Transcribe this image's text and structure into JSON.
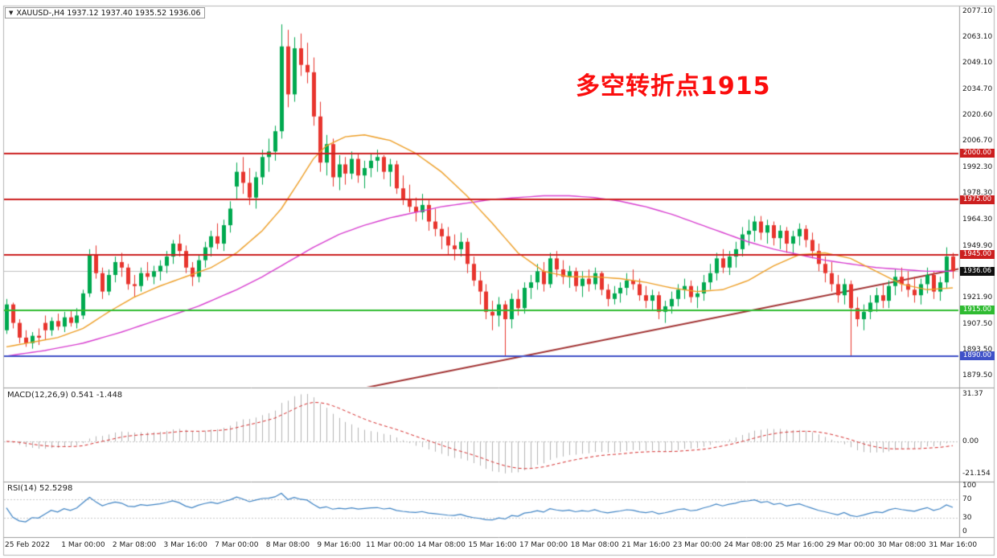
{
  "symbol_bar": {
    "text": "XAUUSD-,H4 1937.12 1937.40 1935.52 1936.06"
  },
  "annotation": {
    "text": "多空转折点1915",
    "color": "#fb0d0d"
  },
  "indicators": {
    "macd_label": "MACD(12,26,9) 0.541 -1.448",
    "rsi_label": "RSI(14) 52.5298"
  },
  "current_price": {
    "value": 1936.06,
    "label": "1936.06",
    "badge_bg": "#101010",
    "line_color": "#c0c0c0"
  },
  "price_lines": [
    {
      "price": 2000.0,
      "label": "2000.00",
      "color": "#cc1f1f"
    },
    {
      "price": 1975.0,
      "label": "1975.00",
      "color": "#cc1f1f"
    },
    {
      "price": 1945.0,
      "label": "1945.00",
      "color": "#cc1f1f"
    },
    {
      "price": 1915.0,
      "label": "1915.00",
      "color": "#2fbb31"
    },
    {
      "price": 1890.0,
      "label": "1890.00",
      "color": "#3f51c8"
    }
  ],
  "axes": {
    "price_ticks": [
      "2077.10",
      "2063.10",
      "2049.10",
      "2034.70",
      "2020.60",
      "2006.70",
      "1992.30",
      "1978.30",
      "1964.30",
      "1949.90",
      "1935.90",
      "1921.90",
      "1907.50",
      "1893.50",
      "1879.50"
    ],
    "macd_ticks": [
      {
        "label": "31.37",
        "value": 31.37
      },
      {
        "label": "0.00",
        "value": 0
      },
      {
        "label": "-21.154",
        "value": -21.154
      }
    ],
    "rsi_ticks": [
      {
        "label": "100",
        "value": 100
      },
      {
        "label": "70",
        "value": 70
      },
      {
        "label": "30",
        "value": 30
      },
      {
        "label": "0",
        "value": 0
      }
    ],
    "time_labels": [
      {
        "label": "25 Feb 2022",
        "bar": 0
      },
      {
        "label": "1 Mar 00:00",
        "bar": 12
      },
      {
        "label": "2 Mar 08:00",
        "bar": 20
      },
      {
        "label": "3 Mar 16:00",
        "bar": 28
      },
      {
        "label": "7 Mar 00:00",
        "bar": 36
      },
      {
        "label": "8 Mar 08:00",
        "bar": 44
      },
      {
        "label": "9 Mar 16:00",
        "bar": 52
      },
      {
        "label": "11 Mar 00:00",
        "bar": 60
      },
      {
        "label": "14 Mar 08:00",
        "bar": 68
      },
      {
        "label": "15 Mar 16:00",
        "bar": 76
      },
      {
        "label": "17 Mar 00:00",
        "bar": 84
      },
      {
        "label": "18 Mar 08:00",
        "bar": 92
      },
      {
        "label": "21 Mar 16:00",
        "bar": 100
      },
      {
        "label": "23 Mar 00:00",
        "bar": 108
      },
      {
        "label": "24 Mar 08:00",
        "bar": 116
      },
      {
        "label": "25 Mar 16:00",
        "bar": 124
      },
      {
        "label": "29 Mar 00:00",
        "bar": 132
      },
      {
        "label": "30 Mar 08:00",
        "bar": 140
      },
      {
        "label": "31 Mar 16:00",
        "bar": 148
      }
    ]
  },
  "chart_data": {
    "type": "candlestick",
    "symbol": "XAUUSD",
    "timeframe": "H4",
    "ohlc_display": {
      "open": 1937.12,
      "high": 1937.4,
      "low": 1935.52,
      "close": 1936.06
    },
    "price_axis": {
      "min": 1879.5,
      "max": 2077.1
    },
    "colors": {
      "up": "#00a94f",
      "down": "#e8352e"
    },
    "candles": [
      [
        1904,
        1921,
        1902,
        1918
      ],
      [
        1918,
        1919,
        1905,
        1908
      ],
      [
        1908,
        1910,
        1897,
        1900
      ],
      [
        1900,
        1904,
        1895,
        1897
      ],
      [
        1897,
        1903,
        1894,
        1901
      ],
      [
        1901,
        1905,
        1896,
        1900
      ],
      [
        1908,
        1912,
        1899,
        1904
      ],
      [
        1904,
        1911,
        1901,
        1909
      ],
      [
        1909,
        1913,
        1904,
        1906
      ],
      [
        1906,
        1914,
        1903,
        1911
      ],
      [
        1911,
        1915,
        1906,
        1908
      ],
      [
        1908,
        1916,
        1905,
        1912
      ],
      [
        1912,
        1926,
        1910,
        1924
      ],
      [
        1924,
        1948,
        1922,
        1945
      ],
      [
        1945,
        1950,
        1932,
        1935
      ],
      [
        1935,
        1938,
        1921,
        1925
      ],
      [
        1925,
        1937,
        1923,
        1934
      ],
      [
        1934,
        1944,
        1930,
        1941
      ],
      [
        1941,
        1946,
        1933,
        1938
      ],
      [
        1938,
        1940,
        1926,
        1929
      ],
      [
        1929,
        1934,
        1922,
        1928
      ],
      [
        1928,
        1938,
        1925,
        1935
      ],
      [
        1935,
        1941,
        1931,
        1933
      ],
      [
        1933,
        1939,
        1929,
        1936
      ],
      [
        1936,
        1942,
        1931,
        1939
      ],
      [
        1939,
        1947,
        1935,
        1944
      ],
      [
        1944,
        1953,
        1940,
        1951
      ],
      [
        1951,
        1956,
        1944,
        1947
      ],
      [
        1947,
        1950,
        1935,
        1938
      ],
      [
        1938,
        1941,
        1928,
        1933
      ],
      [
        1933,
        1945,
        1930,
        1942
      ],
      [
        1942,
        1952,
        1938,
        1949
      ],
      [
        1949,
        1958,
        1944,
        1955
      ],
      [
        1955,
        1962,
        1948,
        1951
      ],
      [
        1951,
        1964,
        1947,
        1961
      ],
      [
        1961,
        1974,
        1957,
        1970
      ],
      [
        1982,
        1995,
        1975,
        1990
      ],
      [
        1990,
        1998,
        1978,
        1984
      ],
      [
        1984,
        1992,
        1972,
        1976
      ],
      [
        1976,
        1990,
        1970,
        1987
      ],
      [
        1987,
        2002,
        1983,
        1998
      ],
      [
        1998,
        2008,
        1990,
        2001
      ],
      [
        2001,
        2015,
        1996,
        2012
      ],
      [
        2012,
        2070,
        2008,
        2058
      ],
      [
        2058,
        2067,
        2025,
        2032
      ],
      [
        2032,
        2063,
        2028,
        2057
      ],
      [
        2057,
        2065,
        2042,
        2048
      ],
      [
        2048,
        2060,
        2038,
        2044
      ],
      [
        2044,
        2052,
        2015,
        2020
      ],
      [
        2020,
        2028,
        1990,
        1995
      ],
      [
        1995,
        2010,
        1988,
        2005
      ],
      [
        2005,
        2008,
        1982,
        1987
      ],
      [
        1987,
        1999,
        1980,
        1994
      ],
      [
        1994,
        1998,
        1983,
        1989
      ],
      [
        1989,
        2001,
        1986,
        1997
      ],
      [
        1997,
        2000,
        1984,
        1988
      ],
      [
        1988,
        1996,
        1981,
        1992
      ],
      [
        1992,
        2000,
        1987,
        1996
      ],
      [
        1996,
        2002,
        1990,
        1998
      ],
      [
        1998,
        1999,
        1986,
        1990
      ],
      [
        1990,
        1997,
        1982,
        1994
      ],
      [
        1994,
        1996,
        1978,
        1981
      ],
      [
        1981,
        1988,
        1972,
        1975
      ],
      [
        1975,
        1983,
        1968,
        1971
      ],
      [
        1971,
        1976,
        1963,
        1968
      ],
      [
        1968,
        1978,
        1964,
        1972
      ],
      [
        1972,
        1975,
        1958,
        1963
      ],
      [
        1963,
        1970,
        1955,
        1959
      ],
      [
        1959,
        1962,
        1948,
        1955
      ],
      [
        1955,
        1960,
        1945,
        1950
      ],
      [
        1950,
        1956,
        1942,
        1948
      ],
      [
        1948,
        1957,
        1944,
        1952
      ],
      [
        1952,
        1954,
        1935,
        1940
      ],
      [
        1940,
        1944,
        1928,
        1931
      ],
      [
        1931,
        1936,
        1918,
        1925
      ],
      [
        1925,
        1929,
        1910,
        1914
      ],
      [
        1914,
        1920,
        1904,
        1912
      ],
      [
        1912,
        1922,
        1906,
        1918
      ],
      [
        1918,
        1920,
        1890,
        1910
      ],
      [
        1910,
        1924,
        1905,
        1921
      ],
      [
        1921,
        1926,
        1912,
        1916
      ],
      [
        1916,
        1930,
        1913,
        1927
      ],
      [
        1927,
        1934,
        1921,
        1930
      ],
      [
        1930,
        1940,
        1926,
        1936
      ],
      [
        1936,
        1941,
        1925,
        1929
      ],
      [
        1929,
        1946,
        1927,
        1943
      ],
      [
        1943,
        1947,
        1933,
        1937
      ],
      [
        1937,
        1942,
        1929,
        1933
      ],
      [
        1933,
        1939,
        1927,
        1936
      ],
      [
        1936,
        1938,
        1925,
        1928
      ],
      [
        1928,
        1936,
        1922,
        1932
      ],
      [
        1932,
        1937,
        1925,
        1929
      ],
      [
        1929,
        1938,
        1926,
        1935
      ],
      [
        1935,
        1936,
        1923,
        1926
      ],
      [
        1926,
        1929,
        1917,
        1921
      ],
      [
        1921,
        1928,
        1918,
        1924
      ],
      [
        1924,
        1930,
        1919,
        1927
      ],
      [
        1927,
        1935,
        1923,
        1931
      ],
      [
        1931,
        1937,
        1926,
        1929
      ],
      [
        1929,
        1932,
        1920,
        1923
      ],
      [
        1923,
        1928,
        1916,
        1920
      ],
      [
        1920,
        1926,
        1915,
        1923
      ],
      [
        1923,
        1925,
        1910,
        1914
      ],
      [
        1914,
        1920,
        1908,
        1917
      ],
      [
        1917,
        1925,
        1913,
        1921
      ],
      [
        1921,
        1929,
        1917,
        1926
      ],
      [
        1926,
        1932,
        1921,
        1928
      ],
      [
        1928,
        1931,
        1919,
        1922
      ],
      [
        1922,
        1928,
        1916,
        1924
      ],
      [
        1924,
        1934,
        1920,
        1930
      ],
      [
        1930,
        1940,
        1926,
        1935
      ],
      [
        1935,
        1946,
        1931,
        1943
      ],
      [
        1943,
        1948,
        1935,
        1938
      ],
      [
        1938,
        1947,
        1934,
        1944
      ],
      [
        1944,
        1952,
        1938,
        1948
      ],
      [
        1948,
        1960,
        1944,
        1956
      ],
      [
        1956,
        1964,
        1950,
        1958
      ],
      [
        1958,
        1966,
        1952,
        1963
      ],
      [
        1963,
        1966,
        1953,
        1957
      ],
      [
        1957,
        1964,
        1951,
        1961
      ],
      [
        1961,
        1963,
        1950,
        1954
      ],
      [
        1954,
        1961,
        1948,
        1958
      ],
      [
        1958,
        1960,
        1946,
        1951
      ],
      [
        1951,
        1958,
        1945,
        1955
      ],
      [
        1955,
        1962,
        1950,
        1959
      ],
      [
        1959,
        1961,
        1949,
        1953
      ],
      [
        1953,
        1957,
        1943,
        1947
      ],
      [
        1947,
        1951,
        1936,
        1940
      ],
      [
        1940,
        1944,
        1930,
        1935
      ],
      [
        1935,
        1941,
        1925,
        1929
      ],
      [
        1929,
        1934,
        1919,
        1923
      ],
      [
        1923,
        1932,
        1918,
        1929
      ],
      [
        1929,
        1931,
        1890,
        1916
      ],
      [
        1916,
        1922,
        1906,
        1910
      ],
      [
        1910,
        1918,
        1904,
        1914
      ],
      [
        1914,
        1923,
        1910,
        1919
      ],
      [
        1919,
        1927,
        1914,
        1923
      ],
      [
        1923,
        1929,
        1916,
        1920
      ],
      [
        1920,
        1931,
        1916,
        1928
      ],
      [
        1928,
        1937,
        1923,
        1933
      ],
      [
        1933,
        1938,
        1925,
        1929
      ],
      [
        1929,
        1936,
        1922,
        1926
      ],
      [
        1926,
        1933,
        1919,
        1923
      ],
      [
        1923,
        1932,
        1918,
        1929
      ],
      [
        1929,
        1938,
        1924,
        1934
      ],
      [
        1934,
        1936,
        1921,
        1925
      ],
      [
        1925,
        1933,
        1920,
        1930
      ],
      [
        1930,
        1949,
        1927,
        1944
      ],
      [
        1944,
        1946,
        1932,
        1936.06
      ]
    ],
    "ma_fast": {
      "name": "ma-orange",
      "color": "#ee9f27",
      "points": [
        [
          0,
          1895
        ],
        [
          8,
          1900
        ],
        [
          12,
          1905
        ],
        [
          16,
          1914
        ],
        [
          20,
          1922
        ],
        [
          24,
          1928
        ],
        [
          28,
          1933
        ],
        [
          32,
          1938
        ],
        [
          36,
          1946
        ],
        [
          40,
          1958
        ],
        [
          43,
          1970
        ],
        [
          46,
          1986
        ],
        [
          48,
          1997
        ],
        [
          50,
          2004
        ],
        [
          53,
          2009
        ],
        [
          56,
          2010
        ],
        [
          60,
          2007
        ],
        [
          64,
          2000
        ],
        [
          68,
          1990
        ],
        [
          72,
          1977
        ],
        [
          76,
          1962
        ],
        [
          80,
          1946
        ],
        [
          84,
          1936
        ],
        [
          88,
          1933
        ],
        [
          92,
          1933
        ],
        [
          96,
          1932
        ],
        [
          100,
          1930
        ],
        [
          104,
          1927
        ],
        [
          108,
          1925
        ],
        [
          112,
          1926
        ],
        [
          116,
          1931
        ],
        [
          120,
          1939
        ],
        [
          124,
          1945
        ],
        [
          128,
          1946
        ],
        [
          132,
          1943
        ],
        [
          136,
          1936
        ],
        [
          140,
          1929
        ],
        [
          144,
          1926
        ],
        [
          148,
          1927
        ]
      ]
    },
    "ma_slow": {
      "name": "ma-magenta",
      "color": "#d83fd0",
      "points": [
        [
          0,
          1890
        ],
        [
          6,
          1893
        ],
        [
          12,
          1897
        ],
        [
          18,
          1903
        ],
        [
          24,
          1910
        ],
        [
          30,
          1917
        ],
        [
          36,
          1926
        ],
        [
          40,
          1933
        ],
        [
          44,
          1941
        ],
        [
          48,
          1949
        ],
        [
          52,
          1956
        ],
        [
          56,
          1961
        ],
        [
          60,
          1965
        ],
        [
          64,
          1968
        ],
        [
          68,
          1971
        ],
        [
          72,
          1973
        ],
        [
          76,
          1975
        ],
        [
          80,
          1976
        ],
        [
          84,
          1977
        ],
        [
          88,
          1977
        ],
        [
          92,
          1976
        ],
        [
          96,
          1974
        ],
        [
          100,
          1971
        ],
        [
          104,
          1967
        ],
        [
          108,
          1962
        ],
        [
          112,
          1957
        ],
        [
          116,
          1952
        ],
        [
          120,
          1948
        ],
        [
          124,
          1945
        ],
        [
          128,
          1942
        ],
        [
          132,
          1940
        ],
        [
          136,
          1938
        ],
        [
          140,
          1937
        ],
        [
          144,
          1936
        ],
        [
          148,
          1936
        ]
      ]
    },
    "trendline": {
      "from_bar": 55,
      "from_price": 1872,
      "to_bar": 150,
      "to_price": 1938,
      "color": "#a23333"
    },
    "macd": {
      "params": "12,26,9",
      "value": 0.541,
      "signal_value": -1.448,
      "axis_max": 31.37,
      "axis_min": -21.154,
      "hist_color": "#b3b3b3",
      "signal_color": "#d62b2b"
    },
    "rsi": {
      "period": 14,
      "value": 52.5298,
      "levels": [
        70,
        30
      ],
      "color": "#3e83c4",
      "level_color": "#c8c8c8"
    }
  }
}
